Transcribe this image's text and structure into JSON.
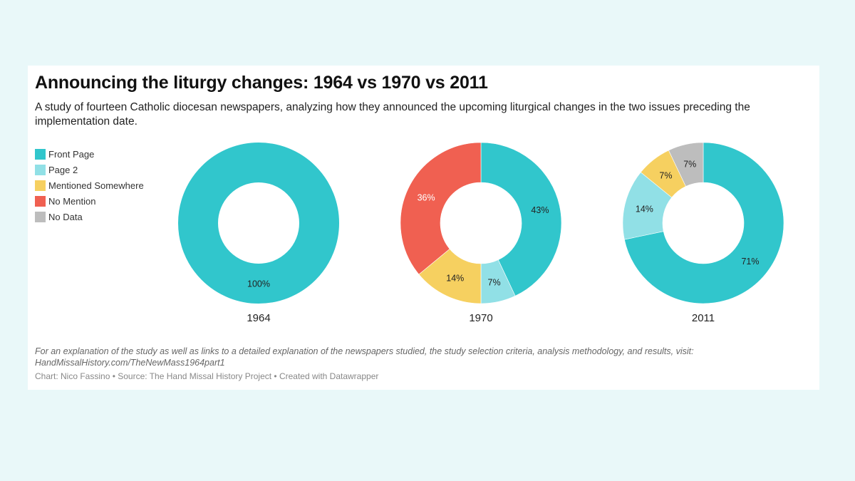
{
  "title": "Announcing the liturgy changes: 1964 vs 1970 vs 2011",
  "subtitle": "A study of fourteen Catholic diocesan newspapers, analyzing how they announced the upcoming liturgical changes in the two issues preceding the implementation date.",
  "legend": [
    {
      "label": "Front Page",
      "color": "#31c6cc"
    },
    {
      "label": "Page 2",
      "color": "#91e0e6"
    },
    {
      "label": "Mentioned Somewhere",
      "color": "#f6d060"
    },
    {
      "label": "No Mention",
      "color": "#f06051"
    },
    {
      "label": "No Data",
      "color": "#bdbdbd"
    }
  ],
  "chart_data": [
    {
      "type": "pie",
      "title": "1964",
      "categories": [
        "Front Page",
        "Page 2",
        "Mentioned Somewhere",
        "No Mention",
        "No Data"
      ],
      "values": [
        100,
        0,
        0,
        0,
        0
      ],
      "labels": [
        "100%",
        "",
        "",
        "",
        ""
      ]
    },
    {
      "type": "pie",
      "title": "1970",
      "categories": [
        "Front Page",
        "Page 2",
        "Mentioned Somewhere",
        "No Mention",
        "No Data"
      ],
      "values": [
        43,
        7,
        14,
        36,
        0
      ],
      "labels": [
        "43%",
        "7%",
        "14%",
        "36%",
        ""
      ]
    },
    {
      "type": "pie",
      "title": "2011",
      "categories": [
        "Front Page",
        "Page 2",
        "Mentioned Somewhere",
        "No Mention",
        "No Data"
      ],
      "values": [
        71,
        14,
        7,
        0,
        7
      ],
      "labels": [
        "71%",
        "14%",
        "7%",
        "",
        "7%"
      ]
    }
  ],
  "footer_note": "For an explanation of the study as well as links to a detailed explanation of the newspapers studied, the study selection criteria, analysis methodology, and results, visit: HandMissalHistory.com/TheNewMass1964part1",
  "credit": "Chart: Nico Fassino • Source: The Hand Missal History Project • Created with Datawrapper"
}
